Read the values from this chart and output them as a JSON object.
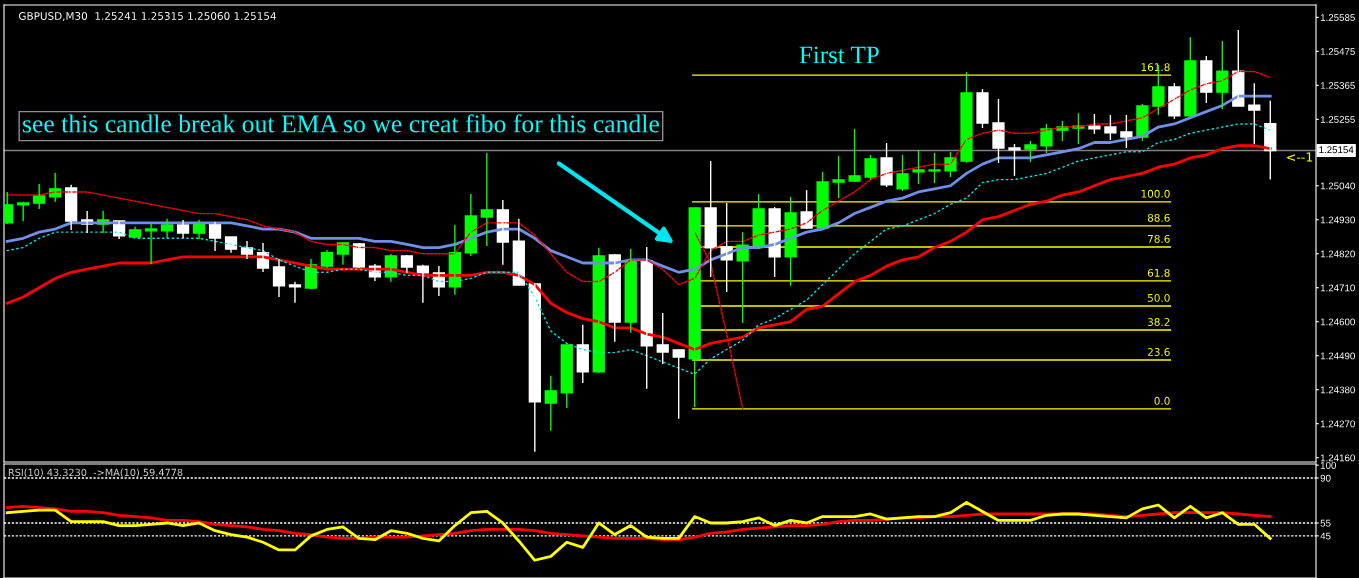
{
  "chart_data": [
    {
      "type": "candlestick",
      "title": "GBPUSD,M30  1.25241 1.25315 1.25060 1.25154",
      "categories": [
        null,
        null,
        null,
        null,
        null,
        null,
        null,
        null,
        null,
        null,
        null,
        null,
        null,
        null,
        null,
        null,
        null,
        null,
        null,
        null,
        null,
        null,
        null,
        null,
        null,
        null,
        null,
        null,
        null,
        null,
        null,
        null,
        null,
        null,
        null,
        null,
        null,
        null,
        null,
        null,
        null,
        null,
        null,
        null,
        null,
        null,
        null,
        null,
        null,
        null,
        null,
        null,
        null,
        null,
        null,
        null,
        null,
        null,
        null,
        null,
        null,
        null,
        null,
        null,
        null,
        null,
        null,
        null,
        null,
        null,
        null,
        null,
        null,
        null,
        null,
        null,
        null,
        null,
        null,
        null
      ],
      "series": [
        {
          "type": "line",
          "color": "#6f8fe8",
          "line_style": "solid",
          "values": [
            1.2486,
            1.2487,
            1.2489,
            1.249,
            1.2492,
            1.2492,
            1.2492,
            1.2492,
            1.2492,
            1.2492,
            1.2492,
            1.2492,
            1.2492,
            1.2492,
            1.2492,
            1.2491,
            1.249,
            1.249,
            1.2489,
            1.2487,
            1.2487,
            1.2487,
            1.2487,
            1.2486,
            1.2486,
            1.2485,
            1.2484,
            1.2484,
            1.2485,
            1.2487,
            1.2489,
            1.249,
            1.249,
            1.2487,
            1.2483,
            1.2481,
            1.2479,
            1.2479,
            1.2479,
            1.248,
            1.248,
            1.2478,
            1.2476,
            1.2477,
            1.248,
            1.2482,
            1.2484,
            1.2484,
            1.2485,
            1.2487,
            1.2489,
            1.249,
            1.2492,
            1.2495,
            1.2497,
            1.2499,
            1.25,
            1.2502,
            1.2503,
            1.2504,
            1.2508,
            1.2511,
            1.2513,
            1.2513,
            1.2513,
            1.2514,
            1.2515,
            1.2516,
            1.2518,
            1.2518,
            1.2519,
            1.252,
            1.2523,
            1.2524,
            1.2526,
            1.2528,
            1.253,
            1.2533,
            1.2533,
            1.2533
          ]
        },
        {
          "type": "line",
          "color": "#ff0000",
          "line_style": "solid",
          "values": [
            1.2466,
            1.2468,
            1.2471,
            1.2474,
            1.2476,
            1.2477,
            1.2478,
            1.2479,
            1.2479,
            1.2479,
            1.248,
            1.2481,
            1.2481,
            1.2481,
            1.2481,
            1.2481,
            1.2481,
            1.248,
            1.2479,
            1.2478,
            1.2477,
            1.2477,
            1.2477,
            1.2477,
            1.2477,
            1.2476,
            1.2475,
            1.2475,
            1.2475,
            1.2475,
            1.2476,
            1.2476,
            1.2475,
            1.2472,
            1.2466,
            1.2463,
            1.2461,
            1.246,
            1.2458,
            1.2458,
            1.2456,
            1.2455,
            1.2453,
            1.2451,
            1.2453,
            1.2454,
            1.2455,
            1.2458,
            1.2459,
            1.246,
            1.2464,
            1.2465,
            1.2469,
            1.2473,
            1.2475,
            1.2478,
            1.248,
            1.2481,
            1.2484,
            1.2486,
            1.2489,
            1.2493,
            1.2494,
            1.2496,
            1.2498,
            1.2499,
            1.2501,
            1.2502,
            1.2504,
            1.2506,
            1.2507,
            1.2508,
            1.251,
            1.2511,
            1.2513,
            1.2514,
            1.2516,
            1.2517,
            1.2517,
            1.2516
          ]
        },
        {
          "type": "line",
          "color": "#ff0000",
          "line_style": "dashed",
          "values": [
            1.2501,
            1.2501,
            1.2501,
            1.2502,
            1.2502,
            1.2502,
            1.2501,
            1.25,
            1.2499,
            1.2498,
            1.2497,
            1.2496,
            1.2495,
            1.2495,
            1.2494,
            1.2493,
            1.2491,
            1.249,
            1.2489,
            1.2486,
            1.2485,
            1.2485,
            1.2484,
            1.2484,
            1.2483,
            1.2483,
            1.2482,
            1.2482,
            1.2482,
            1.2489,
            1.2492,
            1.2492,
            1.2492,
            1.2488,
            1.2482,
            1.2476,
            1.2473,
            1.2473,
            1.2476,
            1.248,
            1.248,
            1.2477,
            1.2472,
            1.2474,
            1.2483,
            1.2486,
            1.2486,
            1.2488,
            1.2489,
            1.249,
            1.2492,
            1.2496,
            1.2499,
            1.2502,
            1.2506,
            1.2508,
            1.2509,
            1.251,
            1.2511,
            1.2511,
            1.2519,
            1.2521,
            1.2522,
            1.2521,
            1.2521,
            1.2522,
            1.2523,
            1.2523,
            1.2524,
            1.2524,
            1.2525,
            1.2526,
            1.2529,
            1.2532,
            1.2535,
            1.2537,
            1.2538,
            1.2541,
            1.2541,
            1.2539
          ]
        },
        {
          "type": "line",
          "color": "#ff0000",
          "line_style": "dashed",
          "values": [
            null,
            null,
            null,
            null,
            null,
            null,
            null,
            null,
            null,
            null,
            null,
            null,
            null,
            null,
            null,
            null,
            null,
            null,
            null,
            null,
            null,
            null,
            null,
            null,
            null,
            null,
            null,
            null,
            null,
            null,
            null,
            null,
            null,
            null,
            null,
            null,
            null,
            null,
            null,
            null,
            null,
            null,
            null,
            1.2489,
            1.2479,
            1.2456,
            1.2432,
            null,
            null,
            null,
            null,
            null,
            null,
            null,
            null,
            null,
            null,
            null,
            null,
            null,
            null,
            null,
            null,
            null,
            null,
            null,
            null,
            null,
            null,
            null,
            null,
            null,
            null,
            null,
            null,
            null,
            null,
            null,
            null,
            null
          ]
        },
        {
          "type": "line",
          "color": "#00e5ee",
          "line_style": "dotted",
          "values": [
            1.2483,
            1.2484,
            1.2487,
            1.2489,
            1.2489,
            1.2489,
            1.2489,
            1.2489,
            1.2487,
            1.2487,
            1.2487,
            1.2487,
            1.2487,
            1.2486,
            1.2485,
            1.2484,
            1.2483,
            1.248,
            1.2478,
            1.2476,
            1.2476,
            1.2477,
            1.2477,
            1.2476,
            1.2476,
            1.2475,
            1.2475,
            1.2473,
            1.2473,
            1.2474,
            1.2476,
            1.2476,
            1.2476,
            1.2468,
            1.2457,
            1.2453,
            1.2451,
            1.245,
            1.245,
            1.2451,
            1.2449,
            1.2447,
            1.2445,
            1.2443,
            1.2448,
            1.2451,
            1.2454,
            1.2459,
            1.2461,
            1.2464,
            1.2467,
            1.2472,
            1.2477,
            1.2482,
            1.2486,
            1.249,
            1.2491,
            1.2493,
            1.2495,
            1.2498,
            1.25,
            1.2505,
            1.2506,
            1.2506,
            1.2507,
            1.2508,
            1.251,
            1.2512,
            1.2513,
            1.2514,
            1.2515,
            1.2515,
            1.2518,
            1.2519,
            1.2521,
            1.2522,
            1.2523,
            1.2524,
            1.2524,
            1.2522
          ]
        },
        {
          "type": "candlestick",
          "colors": [
            "#00ff00",
            "#00ff00",
            "#00ff00",
            "#00ff00",
            "#ffffff",
            "#ffffff",
            "#00ff00",
            "#ffffff",
            "#00ff00",
            "#00ff00",
            "#00ff00",
            "#ffffff",
            "#00ff00",
            "#ffffff",
            "#ffffff",
            "#ffffff",
            "#ffffff",
            "#ffffff",
            "#ffffff",
            "#00ff00",
            "#00ff00",
            "#00ff00",
            "#ffffff",
            "#ffffff",
            "#00ff00",
            "#ffffff",
            "#ffffff",
            "#ffffff",
            "#00ff00",
            "#00ff00",
            "#00ff00",
            "#ffffff",
            "#ffffff",
            "#ffffff",
            "#00ff00",
            "#00ff00",
            "#ffffff",
            "#00ff00",
            "#ffffff",
            "#00ff00",
            "#ffffff",
            "#ffffff",
            "#ffffff",
            "#00ff00",
            "#ffffff",
            "#ffffff",
            "#00ff00",
            "#00ff00",
            "#ffffff",
            "#00ff00",
            "#ffffff",
            "#00ff00",
            "#00ff00",
            "#00ff00",
            "#00ff00",
            "#ffffff",
            "#00ff00",
            "#00ff00",
            "#00ff00",
            "#00ff00",
            "#00ff00",
            "#ffffff",
            "#ffffff",
            "#ffffff",
            "#00ff00",
            "#00ff00",
            "#00ff00",
            "#00ff00",
            "#ffffff",
            "#ffffff",
            "#ffffff",
            "#00ff00",
            "#00ff00",
            "#ffffff",
            "#00ff00",
            "#ffffff",
            "#00ff00",
            "#ffffff",
            "#ffffff",
            "#ffffff"
          ],
          "ohlc": [
            [
              1.2492,
              1.2502,
              1.24916,
              1.24978
            ],
            [
              1.24978,
              1.24988,
              1.24926,
              1.24984
            ],
            [
              1.24984,
              1.25046,
              1.24965,
              1.25007
            ],
            [
              1.25004,
              1.25081,
              1.24988,
              1.2503
            ],
            [
              1.25033,
              1.25043,
              1.24897,
              1.24926
            ],
            [
              1.24929,
              1.24958,
              1.24887,
              1.24916
            ],
            [
              1.24916,
              1.24958,
              1.24887,
              1.24929
            ],
            [
              1.24926,
              1.24926,
              1.24868,
              1.24878
            ],
            [
              1.24874,
              1.24907,
              1.24874,
              1.24897
            ],
            [
              1.24894,
              1.24916,
              1.24787,
              1.249
            ],
            [
              1.24894,
              1.24933,
              1.24871,
              1.24913
            ],
            [
              1.24913,
              1.24929,
              1.24871,
              1.24887
            ],
            [
              1.24887,
              1.24929,
              1.24868,
              1.2492
            ],
            [
              1.2492,
              1.24923,
              1.24829,
              1.24871
            ],
            [
              1.24874,
              1.24874,
              1.24823,
              1.24835
            ],
            [
              1.24839,
              1.24861,
              1.24803,
              1.24819
            ],
            [
              1.24823,
              1.24855,
              1.24761,
              1.24774
            ],
            [
              1.24777,
              1.24803,
              1.2468,
              1.24716
            ],
            [
              1.24719,
              1.24729,
              1.24661,
              1.24713
            ],
            [
              1.24709,
              1.24803,
              1.24706,
              1.24784
            ],
            [
              1.2478,
              1.24832,
              1.24774,
              1.24823
            ],
            [
              1.24819,
              1.24855,
              1.24784,
              1.24855
            ],
            [
              1.24852,
              1.24855,
              1.24774,
              1.24777
            ],
            [
              1.2478,
              1.24787,
              1.24732,
              1.24745
            ],
            [
              1.24745,
              1.24819,
              1.24729,
              1.24813
            ],
            [
              1.24813,
              1.24816,
              1.24758,
              1.24777
            ],
            [
              1.2478,
              1.24784,
              1.24661,
              1.24758
            ],
            [
              1.24758,
              1.2478,
              1.24683,
              1.24713
            ],
            [
              1.24713,
              1.24913,
              1.24687,
              1.24823
            ],
            [
              1.24823,
              1.25013,
              1.24813,
              1.24942
            ],
            [
              1.24939,
              1.25146,
              1.24845,
              1.24962
            ],
            [
              1.24962,
              1.24994,
              1.24784,
              1.24858
            ],
            [
              1.24861,
              1.24933,
              1.24719,
              1.24719
            ],
            [
              1.24722,
              1.24725,
              1.24179,
              1.24341
            ],
            [
              1.24337,
              1.24425,
              1.24247,
              1.24376
            ],
            [
              1.2437,
              1.24525,
              1.24321,
              1.24525
            ],
            [
              1.24525,
              1.2459,
              1.24402,
              1.24438
            ],
            [
              1.24438,
              1.24839,
              1.24434,
              1.24813
            ],
            [
              1.24816,
              1.24819,
              1.24535,
              1.24599
            ],
            [
              1.24599,
              1.24835,
              1.24564,
              1.24797
            ],
            [
              1.24797,
              1.24842,
              1.24383,
              1.24522
            ],
            [
              1.24525,
              1.24628,
              1.24463,
              1.24502
            ],
            [
              1.24509,
              1.24509,
              1.24286,
              1.24486
            ],
            [
              1.2448,
              1.24968,
              1.24324,
              1.24968
            ],
            [
              1.24968,
              1.2512,
              1.24745,
              1.24839
            ],
            [
              1.24842,
              1.24984,
              1.24696,
              1.248
            ],
            [
              1.24797,
              1.2489,
              1.24596,
              1.24848
            ],
            [
              1.24845,
              1.25013,
              1.24835,
              1.24965
            ],
            [
              1.24965,
              1.24971,
              1.24745,
              1.2481
            ],
            [
              1.2481,
              1.25004,
              1.24716,
              1.24952
            ],
            [
              1.24955,
              1.25026,
              1.249,
              1.24903
            ],
            [
              1.24903,
              1.25085,
              1.24903,
              1.25052
            ],
            [
              1.25052,
              1.25136,
              1.25,
              1.25059
            ],
            [
              1.25055,
              1.25224,
              1.25052,
              1.25072
            ],
            [
              1.25068,
              1.2514,
              1.25059,
              1.25127
            ],
            [
              1.2513,
              1.25178,
              1.25036,
              1.25043
            ],
            [
              1.2503,
              1.2514,
              1.25023,
              1.25078
            ],
            [
              1.25085,
              1.25156,
              1.25046,
              1.25091
            ],
            [
              1.25088,
              1.25146,
              1.25049,
              1.25091
            ],
            [
              1.25088,
              1.25149,
              1.25068,
              1.2513
            ],
            [
              1.2512,
              1.25408,
              1.25114,
              1.2534
            ],
            [
              1.2534,
              1.25353,
              1.25227,
              1.25243
            ],
            [
              1.25243,
              1.25321,
              1.25114,
              1.25162
            ],
            [
              1.25162,
              1.25175,
              1.25072,
              1.25156
            ],
            [
              1.25159,
              1.25185,
              1.25117,
              1.25172
            ],
            [
              1.25169,
              1.2524,
              1.25146,
              1.25224
            ],
            [
              1.2522,
              1.2525,
              1.25185,
              1.2523
            ],
            [
              1.25227,
              1.25275,
              1.25175,
              1.25233
            ],
            [
              1.25233,
              1.25272,
              1.25208,
              1.25224
            ],
            [
              1.2523,
              1.25269,
              1.25188,
              1.25211
            ],
            [
              1.25214,
              1.25269,
              1.25162,
              1.25198
            ],
            [
              1.25198,
              1.25305,
              1.25185,
              1.25298
            ],
            [
              1.25298,
              1.25431,
              1.25269,
              1.2536
            ],
            [
              1.2536,
              1.25372,
              1.25256,
              1.25266
            ],
            [
              1.25266,
              1.25521,
              1.25263,
              1.25444
            ],
            [
              1.25444,
              1.2546,
              1.25308,
              1.25343
            ],
            [
              1.25343,
              1.25508,
              1.25288,
              1.25411
            ],
            [
              1.25411,
              1.25544,
              1.25298,
              1.25298
            ],
            [
              1.25301,
              1.25372,
              1.25175,
              1.25285
            ],
            [
              1.25241,
              1.25315,
              1.2506,
              1.25154
            ]
          ]
        }
      ],
      "ylim": [
        1.24146,
        1.25625
      ],
      "yticks": [
        1.25585,
        1.25475,
        1.25365,
        1.25255,
        {
          "value": 1.2504,
          "label": "1.25040"
        },
        {
          "value": 1.2493,
          "label": "1.24930"
        },
        {
          "value": 1.2482,
          "label": "1.24820"
        },
        {
          "value": 1.2471,
          "label": "1.24710"
        },
        {
          "value": 1.246,
          "label": "1.24600"
        },
        {
          "value": 1.2449,
          "label": "1.24490"
        },
        {
          "value": 1.2438,
          "label": "1.24380"
        },
        {
          "value": 1.2427,
          "label": "1.24270"
        },
        {
          "value": 1.2416,
          "label": "1.24160"
        }
      ],
      "ref_lines": [
        {
          "axis": "y",
          "value": 1.25154,
          "label": "1.25154",
          "color": "#808080"
        },
        {
          "axis": "y",
          "value": 1.25398,
          "color": "#ffff00"
        },
        {
          "axis": "y",
          "value": 1.24988,
          "color": "#ffff00"
        },
        {
          "axis": "y",
          "value": 1.2491,
          "color": "#ffff00"
        },
        {
          "axis": "y",
          "value": 1.24842,
          "color": "#ffff00"
        },
        {
          "axis": "y",
          "value": 1.24732,
          "color": "#ffff00"
        },
        {
          "axis": "y",
          "value": 1.24651,
          "color": "#ffff00"
        },
        {
          "axis": "y",
          "value": 1.24573,
          "color": "#ffff00"
        },
        {
          "axis": "y",
          "value": 1.24476,
          "color": "#ffff00"
        },
        {
          "axis": "y",
          "value": 1.24318,
          "color": "#ffff00"
        }
      ],
      "annotations": [
        "see this candle break out EMA so we creat fibo for this candle",
        "First TP",
        "<--1",
        {
          "text": "161.8",
          "y": 1.25398
        },
        {
          "text": "100.0",
          "y": 1.24988
        },
        {
          "text": "88.6",
          "y": 1.2491
        },
        {
          "text": "78.6",
          "y": 1.24842
        },
        {
          "text": "61.8",
          "y": 1.24732
        },
        {
          "text": "50.0",
          "y": 1.24651
        },
        {
          "text": "38.2",
          "y": 1.24573
        },
        {
          "text": "23.6",
          "y": 1.24476
        },
        {
          "text": "0.0",
          "y": 1.24318
        }
      ]
    },
    {
      "type": "line",
      "title": "RSI(10) 43.3230  ->MA(10) 59.4778",
      "categories": [
        null,
        null,
        null,
        null,
        null,
        null,
        null,
        null,
        null,
        null,
        null,
        null,
        null,
        null,
        null,
        null,
        null,
        null,
        null,
        null,
        null,
        null,
        null,
        null,
        null,
        null,
        null,
        null,
        null,
        null,
        null,
        null,
        null,
        null,
        null,
        null,
        null,
        null,
        null,
        null,
        null,
        null,
        null,
        null,
        null,
        null,
        null,
        null,
        null,
        null,
        null,
        null,
        null,
        null,
        null,
        null,
        null,
        null,
        null,
        null,
        null,
        null,
        null,
        null,
        null,
        null,
        null,
        null,
        null,
        null,
        null,
        null,
        null,
        null,
        null,
        null,
        null,
        null,
        null,
        null
      ],
      "series": [
        {
          "color": "#ff0000",
          "line_style": "solid",
          "values": [
            67,
            68,
            67,
            66,
            64,
            64,
            63,
            61,
            60,
            59,
            57,
            57,
            56,
            54,
            53,
            52,
            50,
            49,
            47,
            46,
            44,
            43,
            43,
            44,
            44,
            44,
            45,
            46,
            47,
            49,
            50,
            50,
            50,
            49,
            47,
            46,
            45,
            44,
            43,
            43,
            43,
            42,
            42,
            44,
            47,
            48,
            50,
            51,
            52,
            53,
            53,
            54,
            56,
            57,
            57,
            58,
            59,
            59,
            60,
            60,
            61,
            62,
            62,
            62,
            62,
            62,
            62,
            62,
            62,
            61,
            60,
            61,
            62,
            63,
            63,
            63,
            63,
            62,
            61,
            60
          ]
        },
        {
          "color": "#ffff00",
          "line_style": "solid",
          "values": [
            63,
            64,
            65,
            65,
            56,
            56,
            56,
            53,
            53,
            54,
            55,
            53,
            55,
            49,
            46,
            44,
            40,
            34,
            34,
            45,
            50,
            52,
            43,
            42,
            49,
            47,
            43,
            41,
            53,
            63,
            64,
            55,
            41,
            26,
            29,
            40,
            36,
            55,
            46,
            53,
            44,
            43,
            43,
            60,
            55,
            55,
            56,
            59,
            53,
            57,
            55,
            60,
            60,
            60,
            62,
            58,
            59,
            60,
            60,
            63,
            71,
            64,
            57,
            57,
            57,
            61,
            62,
            62,
            61,
            60,
            59,
            66,
            69,
            59,
            68,
            59,
            63,
            54,
            54,
            43
          ]
        }
      ],
      "ylim": [
        12.2,
        100.9
      ],
      "yticks": [
        100,
        90,
        55,
        45
      ],
      "ref_lines": [
        {
          "axis": "y",
          "value": 90,
          "color": "#ffffff",
          "line_style": "dashed"
        },
        {
          "axis": "y",
          "value": 55,
          "color": "#ffffff",
          "line_style": "dashed"
        },
        {
          "axis": "y",
          "value": 45,
          "color": "#ffffff",
          "line_style": "dashed"
        }
      ]
    }
  ]
}
